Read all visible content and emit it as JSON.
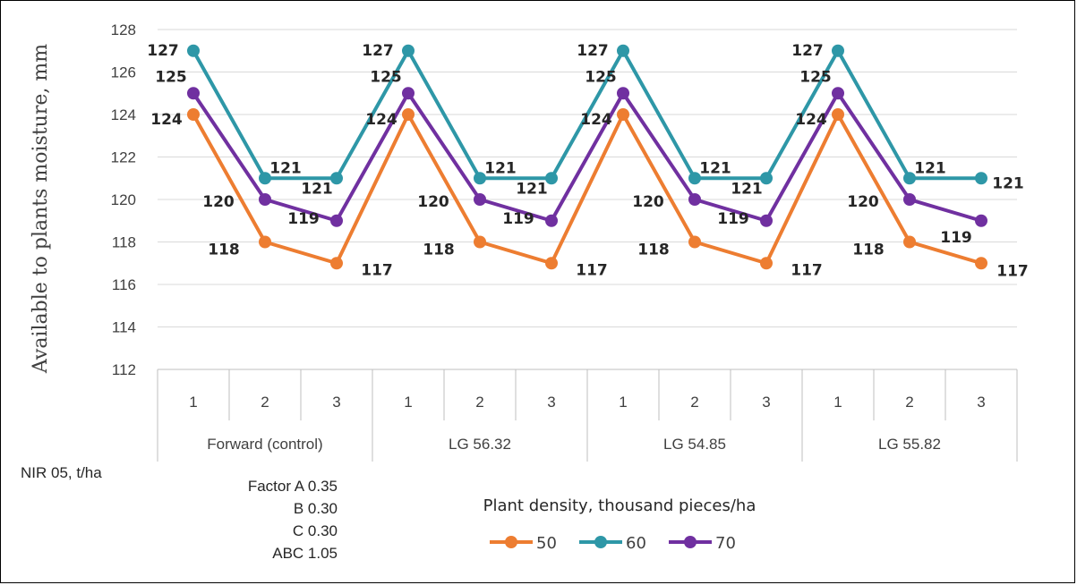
{
  "chart_data": {
    "type": "line",
    "ylabel": "Available to plants moisture, mm",
    "xlabel": "Plant density, thousand pieces/ha",
    "ylim": [
      112,
      128
    ],
    "yticks": [
      112,
      114,
      116,
      118,
      120,
      122,
      124,
      126,
      128
    ],
    "grid": true,
    "legend_position": "bottom",
    "groups": [
      "Forward (control)",
      "LG 56.32",
      "LG 54.85",
      "LG 55.82"
    ],
    "categories": [
      "1",
      "2",
      "3",
      "1",
      "2",
      "3",
      "1",
      "2",
      "3",
      "1",
      "2",
      "3"
    ],
    "series": [
      {
        "name": "50",
        "color": "#ED7D31",
        "values": [
          124,
          118,
          117,
          124,
          118,
          117,
          124,
          118,
          117,
          124,
          118,
          117
        ]
      },
      {
        "name": "60",
        "color": "#2E97A7",
        "values": [
          127,
          121,
          121,
          127,
          121,
          121,
          127,
          121,
          121,
          127,
          121,
          121
        ]
      },
      {
        "name": "70",
        "color": "#7030A0",
        "values": [
          125,
          120,
          119,
          125,
          120,
          119,
          125,
          120,
          119,
          125,
          120,
          119
        ]
      }
    ]
  },
  "nir": {
    "title": "NIR 05, t/ha",
    "factor_a": "Factor A 0.35",
    "b": "B 0.30",
    "c": "C 0.30",
    "abc": "ABC 1.05"
  }
}
